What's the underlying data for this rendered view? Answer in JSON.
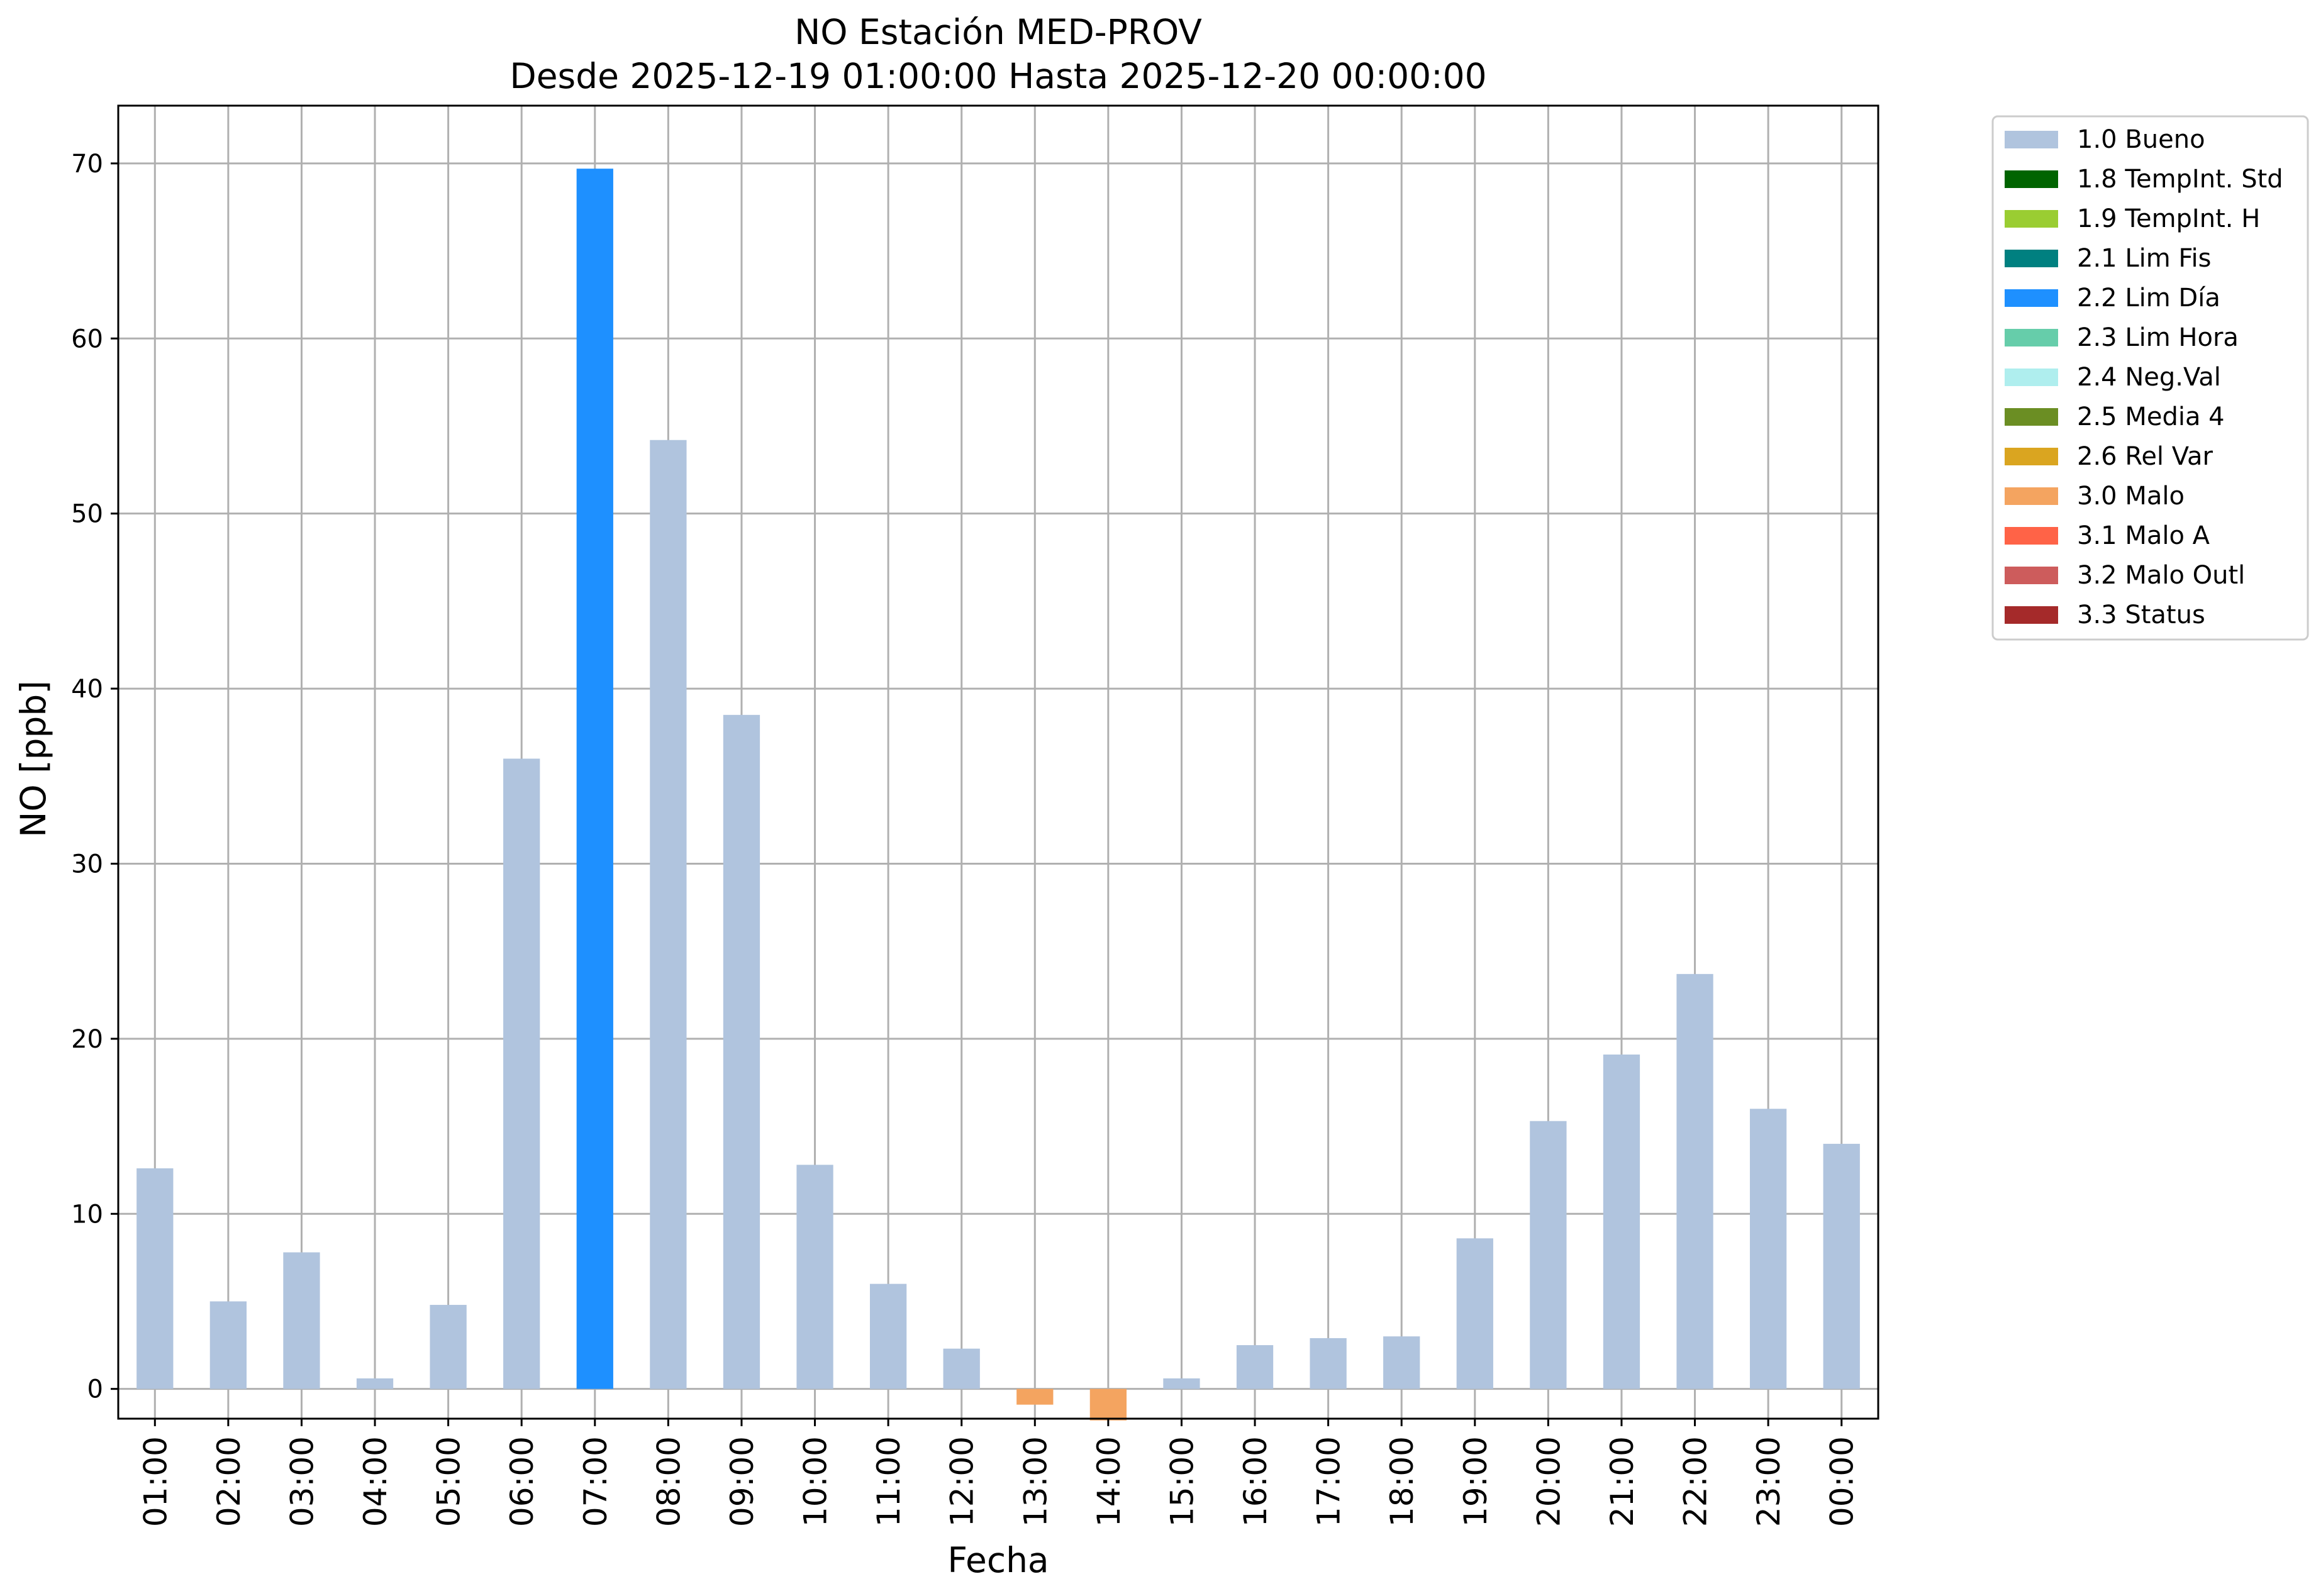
{
  "chart_data": {
    "type": "bar",
    "title": "NO Estación MED-PROV",
    "subtitle": "Desde 2025-12-19 01:00:00 Hasta 2025-12-20 00:00:00",
    "xlabel": "Fecha",
    "ylabel": "NO [ppb]",
    "ylim": [
      -1.7,
      73.3
    ],
    "yticks": [
      0,
      10,
      20,
      30,
      40,
      50,
      60,
      70
    ],
    "grid": true,
    "legend_position": "outside top-right",
    "categories": [
      "01:00",
      "02:00",
      "03:00",
      "04:00",
      "05:00",
      "06:00",
      "07:00",
      "08:00",
      "09:00",
      "10:00",
      "11:00",
      "12:00",
      "13:00",
      "14:00",
      "15:00",
      "16:00",
      "17:00",
      "18:00",
      "19:00",
      "20:00",
      "21:00",
      "22:00",
      "23:00",
      "00:00"
    ],
    "values": [
      12.6,
      5.0,
      7.8,
      0.6,
      4.8,
      36.0,
      69.7,
      54.2,
      38.5,
      12.8,
      6.0,
      2.3,
      -0.9,
      -1.8,
      0.6,
      2.5,
      2.9,
      3.0,
      8.6,
      15.3,
      19.1,
      23.7,
      16.0,
      14.0
    ],
    "flags": [
      "1.0 Bueno",
      "1.0 Bueno",
      "1.0 Bueno",
      "1.0 Bueno",
      "1.0 Bueno",
      "1.0 Bueno",
      "2.2 Lim Día",
      "1.0 Bueno",
      "1.0 Bueno",
      "1.0 Bueno",
      "1.0 Bueno",
      "1.0 Bueno",
      "3.0 Malo",
      "3.0 Malo",
      "1.0 Bueno",
      "1.0 Bueno",
      "1.0 Bueno",
      "1.0 Bueno",
      "1.0 Bueno",
      "1.0 Bueno",
      "1.0 Bueno",
      "1.0 Bueno",
      "1.0 Bueno",
      "1.0 Bueno"
    ],
    "legend": [
      {
        "label": "1.0 Bueno",
        "color": "#b0c4de"
      },
      {
        "label": "1.8 TempInt. Std",
        "color": "#006400"
      },
      {
        "label": "1.9 TempInt. H",
        "color": "#9acd32"
      },
      {
        "label": "2.1 Lim Fis",
        "color": "#008080"
      },
      {
        "label": "2.2 Lim Día",
        "color": "#1e90ff"
      },
      {
        "label": "2.3 Lim Hora",
        "color": "#66cdaa"
      },
      {
        "label": "2.4 Neg.Val",
        "color": "#afeeee"
      },
      {
        "label": "2.5 Media 4",
        "color": "#6b8e23"
      },
      {
        "label": "2.6 Rel Var",
        "color": "#daa520"
      },
      {
        "label": "3.0 Malo",
        "color": "#f4a460"
      },
      {
        "label": "3.1 Malo A",
        "color": "#ff6347"
      },
      {
        "label": "3.2 Malo Outl",
        "color": "#cd5c5c"
      },
      {
        "label": "3.3 Status",
        "color": "#a52a2a"
      }
    ]
  }
}
